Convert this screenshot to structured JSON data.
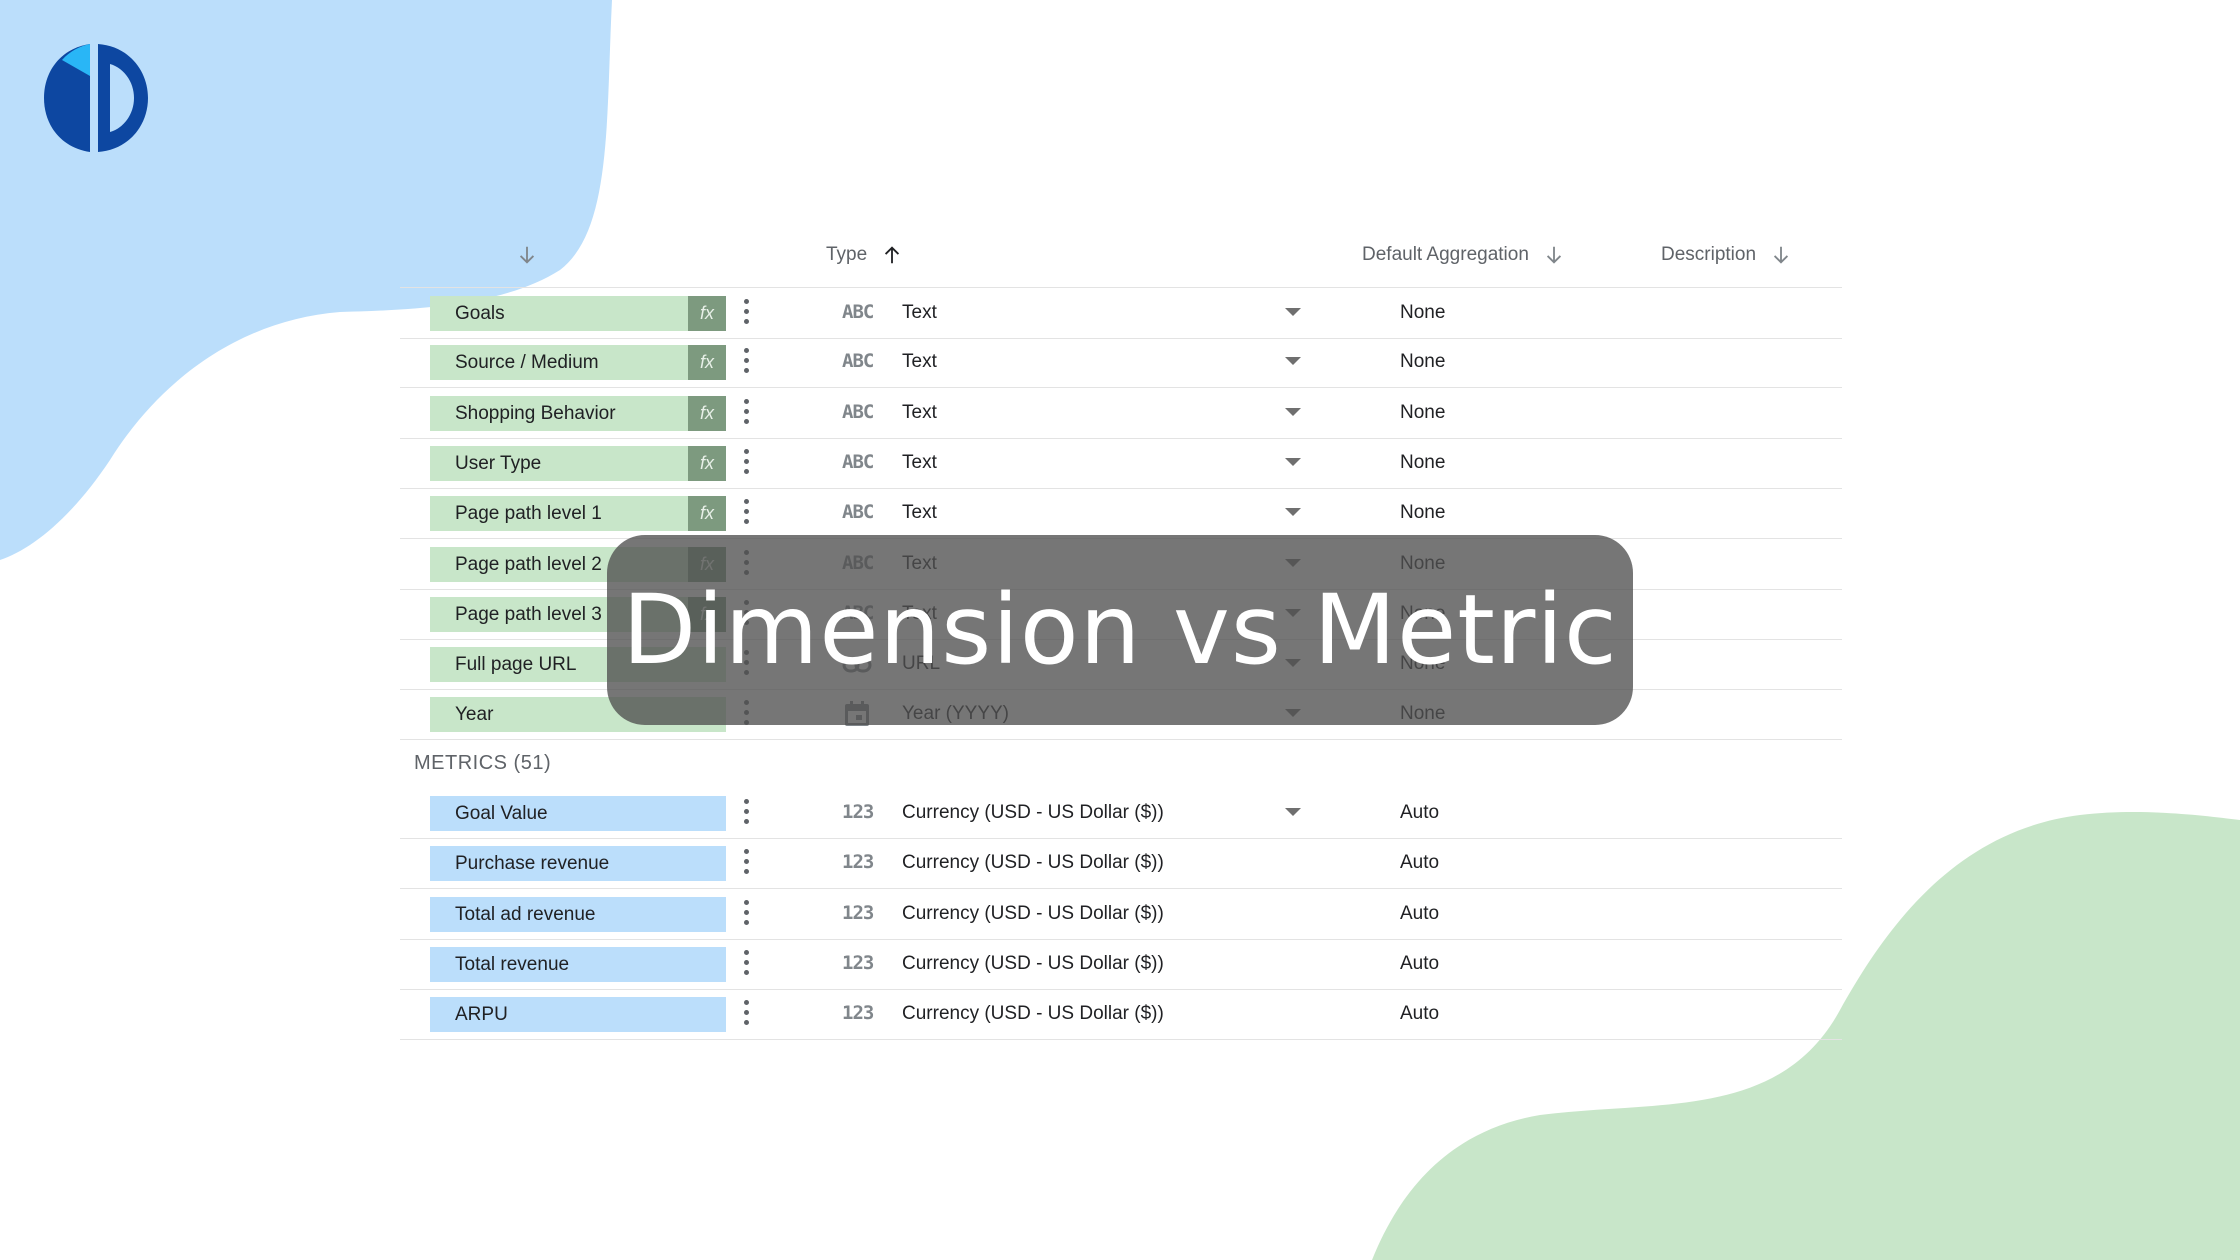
{
  "title": "Dimension vs Metric",
  "colors": {
    "dimension_chip": "#c8e6c9",
    "metric_chip": "#bbdefb",
    "blob_blue": "#bbdefb",
    "blob_green": "#c8e6c9",
    "logo": "#0d47a1"
  },
  "headers": {
    "type": "Type",
    "aggregation": "Default Aggregation",
    "description": "Description"
  },
  "dimensions": [
    {
      "name": "Goals",
      "type_icon": "ABC",
      "type": "Text",
      "aggregation": "None",
      "fx": "fx"
    },
    {
      "name": "Source / Medium",
      "type_icon": "ABC",
      "type": "Text",
      "aggregation": "None",
      "fx": "fx"
    },
    {
      "name": "Shopping Behavior",
      "type_icon": "ABC",
      "type": "Text",
      "aggregation": "None",
      "fx": "fx"
    },
    {
      "name": "User Type",
      "type_icon": "ABC",
      "type": "Text",
      "aggregation": "None",
      "fx": "fx"
    },
    {
      "name": "Page path level 1",
      "type_icon": "ABC",
      "type": "Text",
      "aggregation": "None",
      "fx": "fx"
    },
    {
      "name": "Page path level 2",
      "type_icon": "ABC",
      "type": "Text",
      "aggregation": "None",
      "fx": "fx"
    },
    {
      "name": "Page path level 3",
      "type_icon": "ABC",
      "type": "Text",
      "aggregation": "None",
      "fx": "fx"
    },
    {
      "name": "Full page URL",
      "type_icon": "link-icon",
      "type": "URL",
      "aggregation": "None",
      "fx": ""
    },
    {
      "name": "Year",
      "type_icon": "calendar-icon",
      "type": "Year (YYYY)",
      "aggregation": "None",
      "fx": ""
    }
  ],
  "metrics_section": "METRICS (51)",
  "metrics": [
    {
      "name": "Goal Value",
      "type_icon": "123",
      "type": "Currency (USD - US Dollar ($))",
      "aggregation": "Auto",
      "dropdown": true
    },
    {
      "name": "Purchase revenue",
      "type_icon": "123",
      "type": "Currency (USD - US Dollar ($))",
      "aggregation": "Auto",
      "dropdown": false
    },
    {
      "name": "Total ad revenue",
      "type_icon": "123",
      "type": "Currency (USD - US Dollar ($))",
      "aggregation": "Auto",
      "dropdown": false
    },
    {
      "name": "Total revenue",
      "type_icon": "123",
      "type": "Currency (USD - US Dollar ($))",
      "aggregation": "Auto",
      "dropdown": false
    },
    {
      "name": "ARPU",
      "type_icon": "123",
      "type": "Currency (USD - US Dollar ($))",
      "aggregation": "Auto",
      "dropdown": false
    }
  ]
}
